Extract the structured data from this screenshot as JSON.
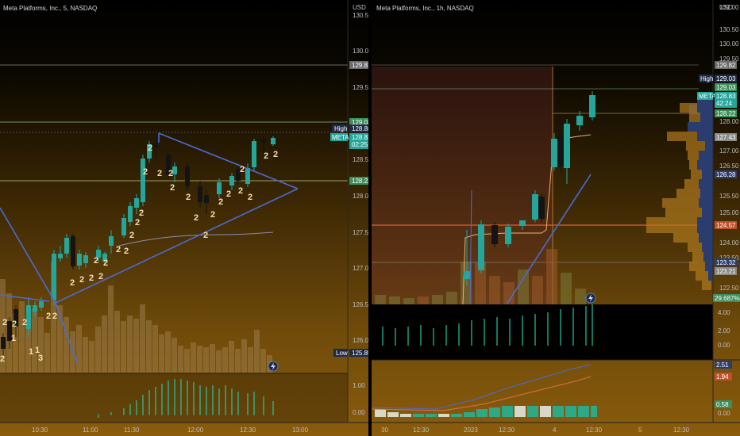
{
  "left_chart": {
    "title": "Meta Platforms, Inc., 5, NASDAQ",
    "currency": "USD",
    "price_ticks": [
      "130.50",
      "130.00",
      "129.50",
      "129.00",
      "128.50",
      "128.00",
      "127.50",
      "127.00",
      "126.50",
      "126.00"
    ],
    "time_ticks": [
      "10:30",
      "11:00",
      "11:30",
      "12:00",
      "12:30",
      "13:00"
    ],
    "osc_ticks": [
      "1.00",
      "0.00"
    ],
    "badges": {
      "level_top": "129.82",
      "level_green": "129.03",
      "high_label": "High",
      "high_value": "128.88",
      "symbol": "META",
      "last_price": "128.83",
      "countdown": "02:25",
      "level_mid": "128.22",
      "low_label": "Low",
      "low_value": "125.85"
    },
    "counts": [
      "2",
      "2",
      "2",
      "2",
      "2",
      "2",
      "2",
      "2",
      "2",
      "2",
      "2",
      "2",
      "2",
      "2",
      "2",
      "2",
      "2",
      "2",
      "2",
      "2",
      "2",
      "2",
      "2",
      "2",
      "1",
      "2",
      "2",
      "2",
      "2",
      "1",
      "2",
      "2",
      "2",
      "2",
      "2",
      "3",
      "1"
    ],
    "colors": {
      "up": "#26a69a",
      "down": "#ef5350",
      "trendline": "#4a6cd4",
      "bg_top": "#000000",
      "bg_bottom": "#8a5c0c"
    }
  },
  "right_chart": {
    "title": "Meta Platforms, Inc., 1h, NASDAQ",
    "currency": "USD",
    "price_ticks": [
      "131.00",
      "130.50",
      "130.00",
      "129.50",
      "128.00",
      "127.00",
      "126.50",
      "125.50",
      "125.00",
      "124.00",
      "123.50",
      "122.50"
    ],
    "time_ticks": [
      "30",
      "12:30",
      "2023",
      "12:30",
      "4",
      "12:30",
      "5",
      "12:30"
    ],
    "osc1_ticks": [
      "4.00",
      "2.00",
      "0.00"
    ],
    "osc2_ticks": [
      "0.00"
    ],
    "badges": {
      "level_top": "129.82",
      "high_label": "High",
      "high_value": "129.03",
      "level_green": "129.03",
      "symbol": "META",
      "last_price": "128.83",
      "countdown": "42:24",
      "level_mid": "128.22",
      "level_grey1": "127.43",
      "level_blue": "126.28",
      "level_red": "124.57",
      "level_blue2": "123.32",
      "level_grey2": "123.21",
      "percent": "29.687%",
      "osc2_blue": "2.51",
      "osc2_red": "1.94",
      "osc2_green": "0.58"
    }
  }
}
